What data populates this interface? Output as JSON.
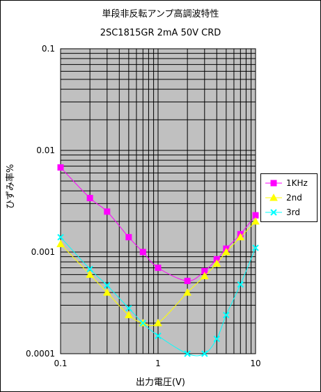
{
  "chart_data": {
    "type": "line",
    "title": "単段非反転アンプ高調波特性",
    "subtitle": "2SC1815GR 2mA 50V CRD",
    "xlabel": "出力電圧(V)",
    "ylabel": "ひずみ率%",
    "x_scale": "log",
    "y_scale": "log",
    "xlim": [
      0.1,
      10
    ],
    "ylim": [
      0.0001,
      0.1
    ],
    "x_tick_labels": [
      "0.1",
      "1",
      "10"
    ],
    "y_tick_labels": [
      "0.0001",
      "0.001",
      "0.01",
      "0.1"
    ],
    "grid": true,
    "plot_background": "#c0c0c0",
    "legend_position": "right",
    "series": [
      {
        "name": "1KHz",
        "color": "#ff00ff",
        "marker": "square",
        "points": [
          [
            0.1,
            0.0068
          ],
          [
            0.2,
            0.0034
          ],
          [
            0.3,
            0.0025
          ],
          [
            0.5,
            0.0014
          ],
          [
            0.7,
            0.001
          ],
          [
            1,
            0.0007
          ],
          [
            2,
            0.00052
          ],
          [
            3,
            0.00065
          ],
          [
            4,
            0.00085
          ],
          [
            5,
            0.00108
          ],
          [
            7,
            0.0015
          ],
          [
            10,
            0.0023
          ]
        ]
      },
      {
        "name": "2nd",
        "color": "#ffff00",
        "marker": "triangle",
        "points": [
          [
            0.1,
            0.0012
          ],
          [
            0.2,
            0.0006
          ],
          [
            0.3,
            0.0004
          ],
          [
            0.5,
            0.00024
          ],
          [
            0.7,
            0.0002
          ],
          [
            1,
            0.0002
          ],
          [
            2,
            0.0004
          ],
          [
            3,
            0.00058
          ],
          [
            4,
            0.00077
          ],
          [
            5,
            0.001
          ],
          [
            7,
            0.0014
          ],
          [
            10,
            0.002
          ]
        ]
      },
      {
        "name": "3rd",
        "color": "#00ffff",
        "marker": "x",
        "points": [
          [
            0.1,
            0.0014
          ],
          [
            0.2,
            0.00068
          ],
          [
            0.3,
            0.00047
          ],
          [
            0.5,
            0.00028
          ],
          [
            0.7,
            0.0002
          ],
          [
            1,
            0.00015
          ],
          [
            2,
            0.0001
          ],
          [
            3,
            0.0001
          ],
          [
            4,
            0.00014
          ],
          [
            5,
            0.00024
          ],
          [
            7,
            0.00048
          ],
          [
            10,
            0.0011
          ]
        ]
      }
    ]
  }
}
